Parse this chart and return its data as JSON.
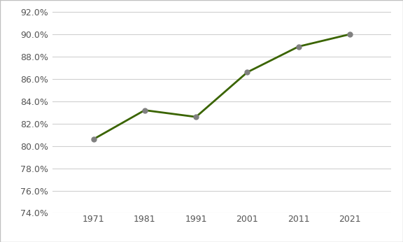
{
  "x": [
    1971,
    1981,
    1991,
    2001,
    2011,
    2021
  ],
  "y": [
    0.806,
    0.832,
    0.826,
    0.866,
    0.889,
    0.9
  ],
  "line_color": "#3a6400",
  "marker_color": "#808080",
  "marker_size": 5,
  "line_width": 2.0,
  "ylim": [
    0.74,
    0.922
  ],
  "yticks": [
    0.74,
    0.76,
    0.78,
    0.8,
    0.82,
    0.84,
    0.86,
    0.88,
    0.9,
    0.92
  ],
  "xticks": [
    1971,
    1981,
    1991,
    2001,
    2011,
    2021
  ],
  "grid_color": "#d0d0d0",
  "background_color": "#ffffff",
  "border_color": "#c0c0c0"
}
